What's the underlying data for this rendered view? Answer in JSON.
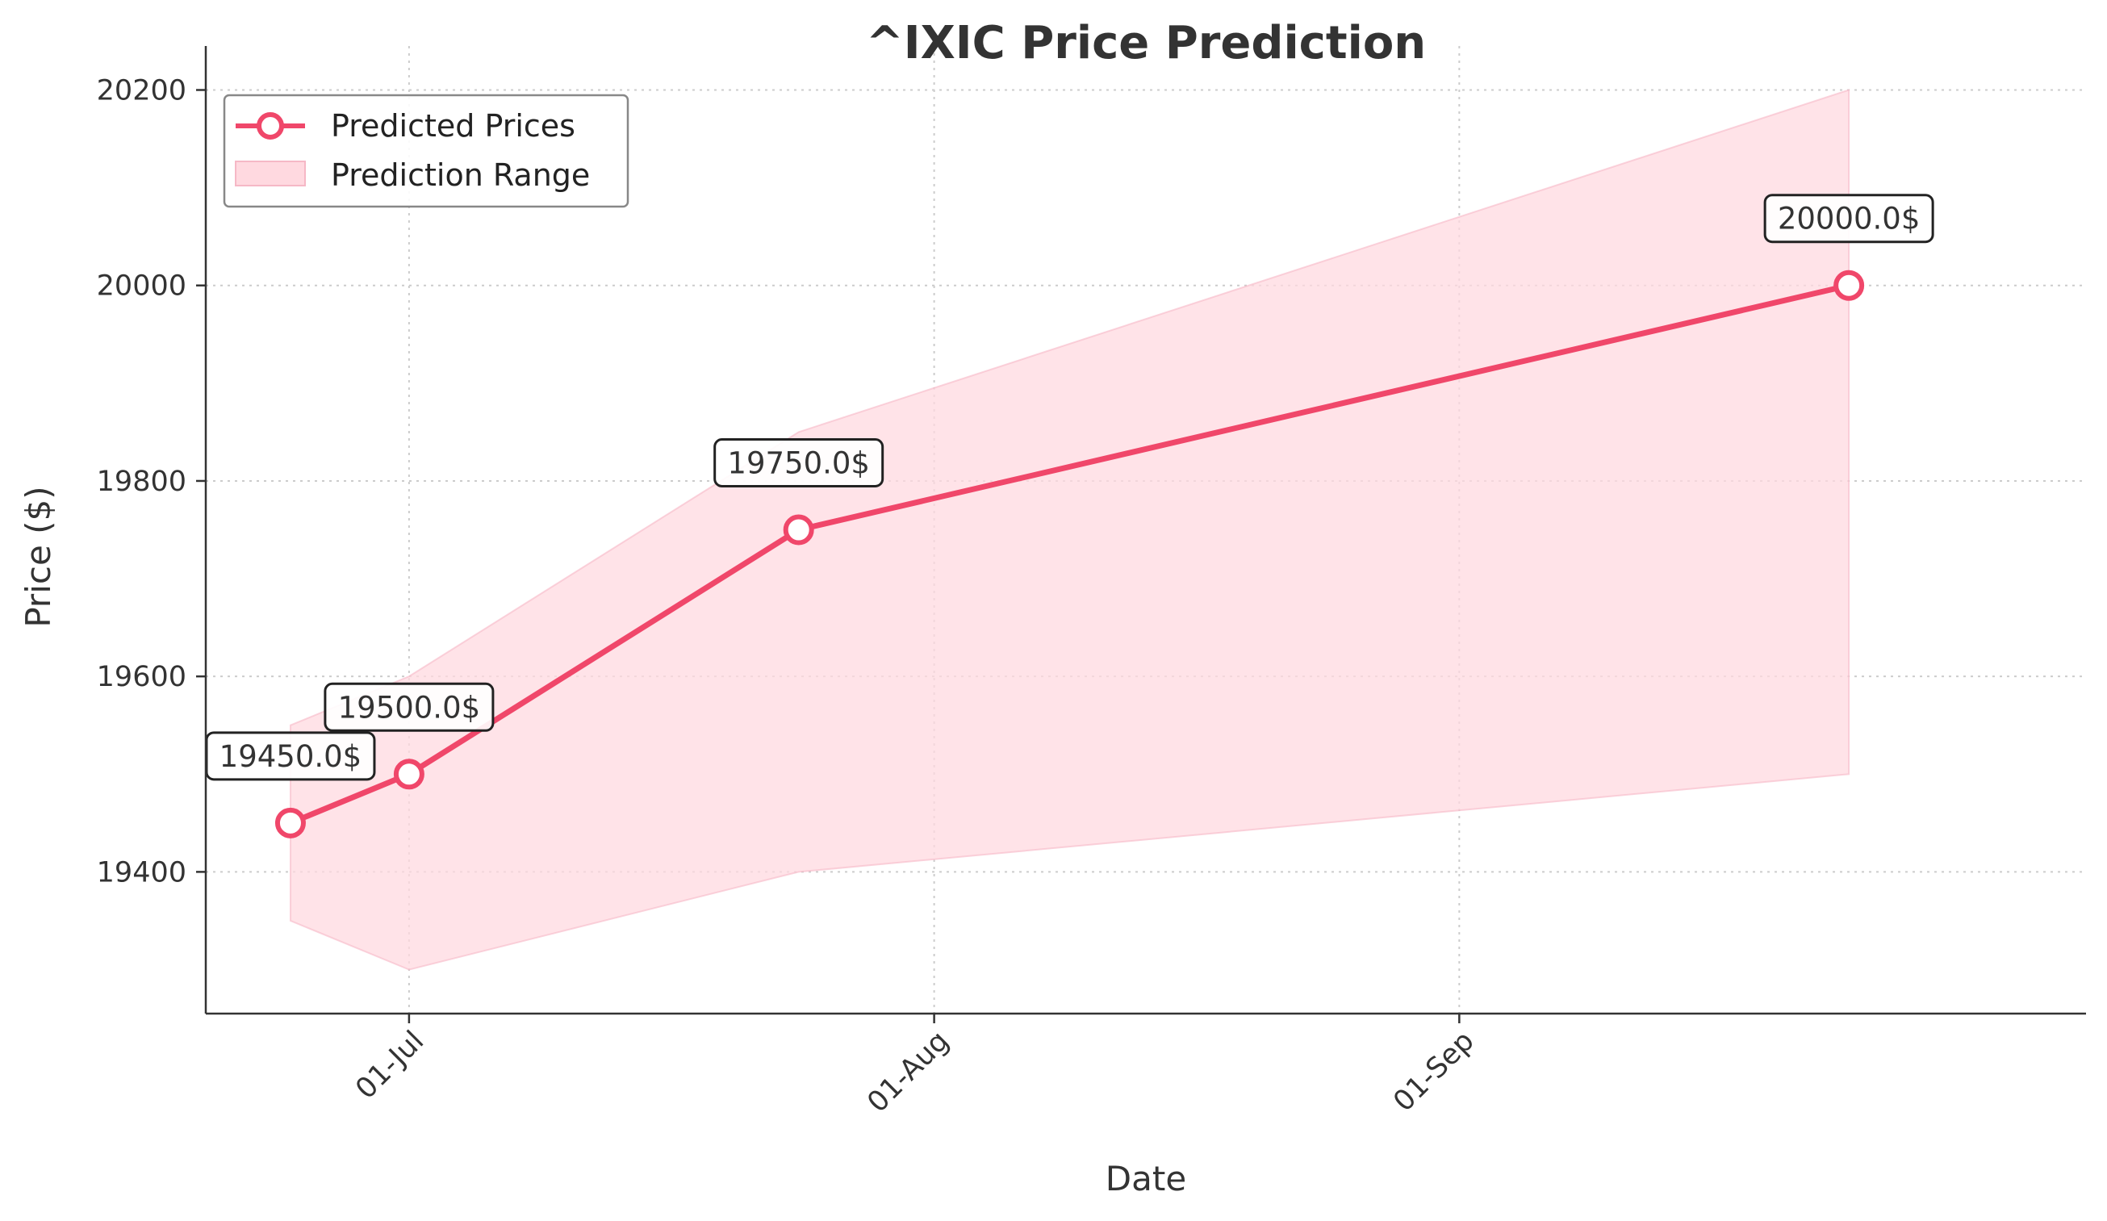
{
  "chart_data": {
    "type": "line",
    "title": "^IXIC Price Prediction",
    "xlabel": "Date",
    "ylabel": "Price ($)",
    "x_type": "date",
    "xlim": [
      "2024-06-19",
      "2024-10-08"
    ],
    "ylim": [
      19255,
      20245
    ],
    "x_ticks": [
      {
        "date": "2024-07-01",
        "label": "01-Jul"
      },
      {
        "date": "2024-08-01",
        "label": "01-Aug"
      },
      {
        "date": "2024-09-01",
        "label": "01-Sep"
      }
    ],
    "y_ticks": [
      19400,
      19600,
      19800,
      20000,
      20200
    ],
    "grid": true,
    "legend_position": "top-left",
    "series": [
      {
        "name": "Predicted Prices",
        "type": "line",
        "color": "#f0476a",
        "marker": "circle-hollow",
        "points": [
          {
            "x": "2024-06-24",
            "y": 19450.0,
            "label": "19450.0$"
          },
          {
            "x": "2024-07-01",
            "y": 19500.0,
            "label": "19500.0$"
          },
          {
            "x": "2024-07-24",
            "y": 19750.0,
            "label": "19750.0$"
          },
          {
            "x": "2024-09-24",
            "y": 20000.0,
            "label": "20000.0$"
          }
        ]
      },
      {
        "name": "Prediction Range",
        "type": "area",
        "color": "#ffd9e0",
        "points": [
          {
            "x": "2024-06-24",
            "low": 19350,
            "high": 19550
          },
          {
            "x": "2024-07-01",
            "low": 19300,
            "high": 19600
          },
          {
            "x": "2024-07-24",
            "low": 19400,
            "high": 19850
          },
          {
            "x": "2024-09-24",
            "low": 19500,
            "high": 20200
          }
        ]
      }
    ]
  }
}
